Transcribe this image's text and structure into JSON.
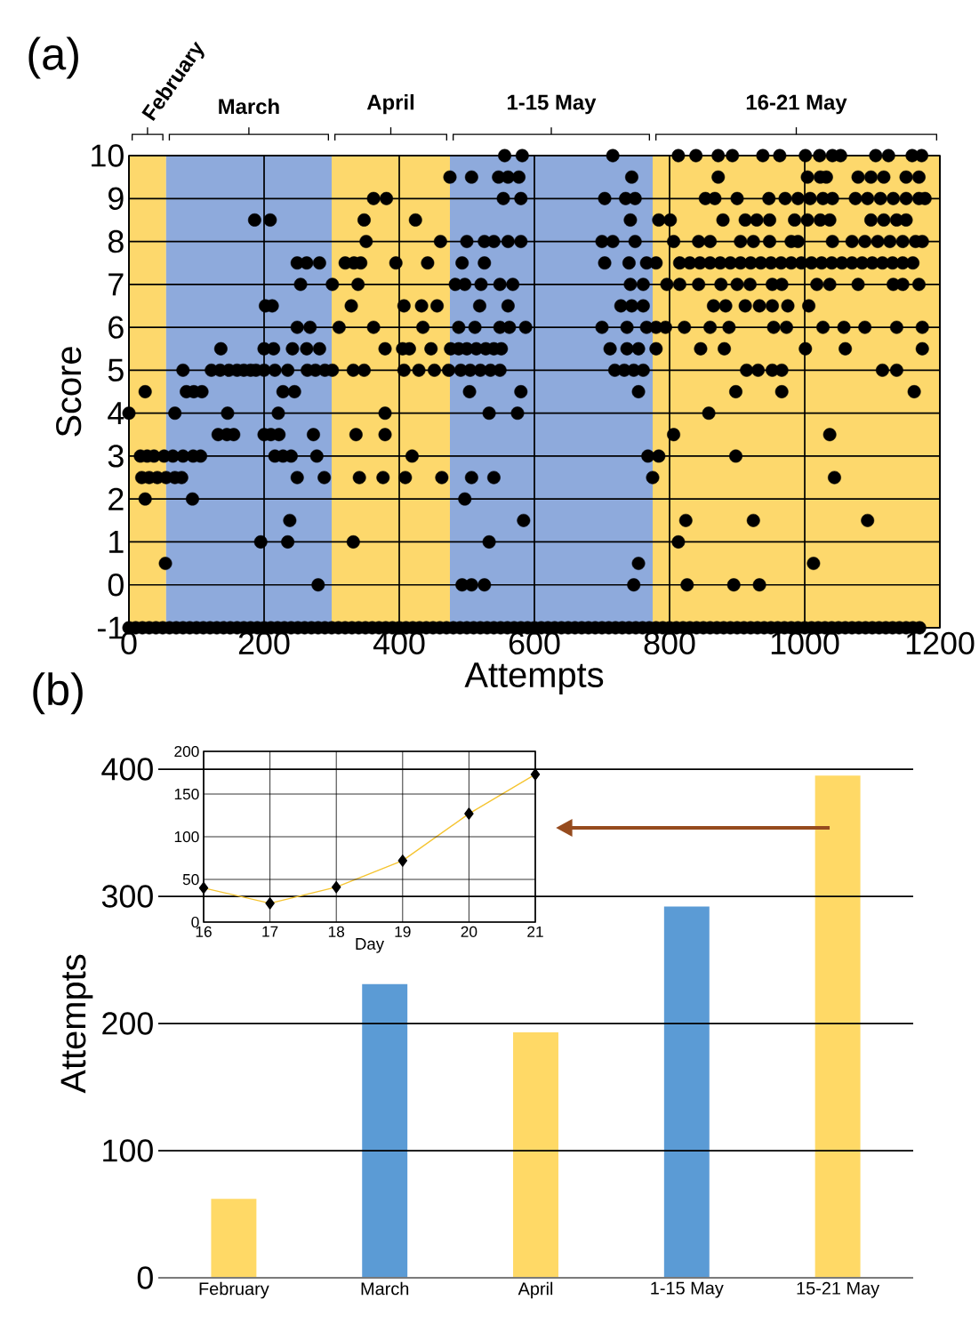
{
  "chart_data": [
    {
      "type": "scatter",
      "xlabel": "Attempts",
      "ylabel": "Score",
      "annotations": [
        "(a)"
      ],
      "xlim": [
        0,
        1200
      ],
      "ylim": [
        -1,
        10
      ],
      "xticks": [
        0,
        200,
        400,
        600,
        800,
        1000,
        1200
      ],
      "yticks": [
        -1,
        0,
        1,
        2,
        3,
        4,
        5,
        6,
        7,
        8,
        9,
        10
      ],
      "grid": true,
      "marker": "circle",
      "bands": [
        {
          "axis": "x",
          "from": 0,
          "to": 55,
          "label": "February",
          "color": "#fdd86c"
        },
        {
          "axis": "x",
          "from": 55,
          "to": 300,
          "label": "March",
          "color": "#8eaadc"
        },
        {
          "axis": "x",
          "from": 300,
          "to": 475,
          "label": "April",
          "color": "#fdd86c"
        },
        {
          "axis": "x",
          "from": 475,
          "to": 775,
          "label": "1-15 May",
          "color": "#8eaadc"
        },
        {
          "axis": "x",
          "from": 775,
          "to": 1200,
          "label": "16-21 May",
          "color": "#fdd86c"
        }
      ],
      "series": [
        {
          "color": "#000000",
          "x": [
            556,
            582,
            716,
            813,
            839,
            872,
            893,
            938,
            963,
            1001,
            1022,
            1041,
            1053,
            1105,
            1124,
            1159,
            1173
          ],
          "values": [
            10,
            10,
            10,
            10,
            10,
            10,
            10,
            10,
            10,
            10,
            10,
            10,
            10,
            10,
            10,
            10,
            10
          ]
        },
        {
          "color": "#000000",
          "x": [
            475,
            507,
            547,
            561,
            577,
            744,
            872,
            1004,
            1023,
            1032,
            1079,
            1098,
            1117,
            1150,
            1169
          ],
          "values": [
            9.5,
            9.5,
            9.5,
            9.5,
            9.5,
            9.5,
            9.5,
            9.5,
            9.5,
            9.5,
            9.5,
            9.5,
            9.5,
            9.5,
            9.5
          ]
        },
        {
          "color": "#000000",
          "x": [
            362,
            381,
            554,
            580,
            704,
            735,
            749,
            853,
            867,
            900,
            947,
            971,
            990,
            1008,
            1027,
            1041,
            1075,
            1093,
            1112,
            1131,
            1150,
            1169,
            1178
          ],
          "values": [
            9,
            9,
            9,
            9,
            9,
            9,
            9,
            9,
            9,
            9,
            9,
            9,
            9,
            9,
            9,
            9,
            9,
            9,
            9,
            9,
            9,
            9,
            9
          ]
        },
        {
          "color": "#000000",
          "x": [
            186,
            209,
            348,
            424,
            742,
            784,
            801,
            879,
            912,
            929,
            948,
            985,
            1004,
            1023,
            1037,
            1098,
            1117,
            1136,
            1150
          ],
          "values": [
            8.5,
            8.5,
            8.5,
            8.5,
            8.5,
            8.5,
            8.5,
            8.5,
            8.5,
            8.5,
            8.5,
            8.5,
            8.5,
            8.5,
            8.5,
            8.5,
            8.5,
            8.5,
            8.5
          ]
        },
        {
          "color": "#000000",
          "x": [
            351,
            461,
            500,
            526,
            540,
            561,
            580,
            700,
            716,
            749,
            806,
            843,
            860,
            905,
            924,
            948,
            980,
            990,
            1041,
            1070,
            1089,
            1108,
            1126,
            1145,
            1164,
            1174
          ],
          "values": [
            8,
            8,
            8,
            8,
            8,
            8,
            8,
            8,
            8,
            8,
            8,
            8,
            8,
            8,
            8,
            8,
            8,
            8,
            8,
            8,
            8,
            8,
            8,
            8,
            8,
            8
          ]
        },
        {
          "color": "#000000",
          "x": [
            249,
            263,
            282,
            320,
            333,
            343,
            395,
            442,
            493,
            526,
            704,
            740,
            766,
            780,
            815,
            830,
            845,
            860,
            875,
            890,
            905,
            920,
            935,
            950,
            965,
            980,
            995,
            1010,
            1025,
            1040,
            1055,
            1070,
            1085,
            1100,
            1115,
            1130,
            1145,
            1160
          ],
          "values": [
            7.5,
            7.5,
            7.5,
            7.5,
            7.5,
            7.5,
            7.5,
            7.5,
            7.5,
            7.5,
            7.5,
            7.5,
            7.5,
            7.5,
            7.5,
            7.5,
            7.5,
            7.5,
            7.5,
            7.5,
            7.5,
            7.5,
            7.5,
            7.5,
            7.5,
            7.5,
            7.5,
            7.5,
            7.5,
            7.5,
            7.5,
            7.5,
            7.5,
            7.5,
            7.5,
            7.5,
            7.5,
            7.5
          ]
        },
        {
          "color": "#000000",
          "x": [
            254,
            301,
            339,
            483,
            497,
            521,
            549,
            568,
            742,
            761,
            796,
            815,
            843,
            876,
            900,
            919,
            952,
            966,
            1018,
            1037,
            1079,
            1131,
            1145,
            1169
          ],
          "values": [
            7,
            7,
            7,
            7,
            7,
            7,
            7,
            7,
            7,
            7,
            7,
            7,
            7,
            7,
            7,
            7,
            7,
            7,
            7,
            7,
            7,
            7,
            7,
            7
          ]
        },
        {
          "color": "#000000",
          "x": [
            202,
            212,
            329,
            407,
            433,
            456,
            519,
            561,
            728,
            744,
            761,
            865,
            883,
            912,
            933,
            952,
            975,
            1006
          ],
          "values": [
            6.5,
            6.5,
            6.5,
            6.5,
            6.5,
            6.5,
            6.5,
            6.5,
            6.5,
            6.5,
            6.5,
            6.5,
            6.5,
            6.5,
            6.5,
            6.5,
            6.5,
            6.5
          ]
        },
        {
          "color": "#000000",
          "x": [
            249,
            268,
            311,
            362,
            435,
            488,
            512,
            549,
            563,
            587,
            700,
            737,
            766,
            780,
            794,
            822,
            860,
            888,
            954,
            973,
            1027,
            1058,
            1089,
            1136,
            1174
          ],
          "values": [
            6,
            6,
            6,
            6,
            6,
            6,
            6,
            6,
            6,
            6,
            6,
            6,
            6,
            6,
            6,
            6,
            6,
            6,
            6,
            6,
            6,
            6,
            6,
            6,
            6
          ]
        },
        {
          "color": "#000000",
          "x": [
            136,
            200,
            214,
            242,
            263,
            282,
            379,
            405,
            415,
            447,
            476,
            488,
            500,
            514,
            528,
            540,
            551,
            712,
            737,
            754,
            780,
            846,
            881,
            1001,
            1060,
            1174
          ],
          "values": [
            5.5,
            5.5,
            5.5,
            5.5,
            5.5,
            5.5,
            5.5,
            5.5,
            5.5,
            5.5,
            5.5,
            5.5,
            5.5,
            5.5,
            5.5,
            5.5,
            5.5,
            5.5,
            5.5,
            5.5,
            5.5,
            5.5,
            5.5,
            5.5,
            5.5,
            5.5
          ]
        },
        {
          "color": "#000000",
          "x": [
            80,
            122,
            135,
            148,
            160,
            170,
            180,
            188,
            200,
            216,
            235,
            264,
            276,
            290,
            301,
            332,
            348,
            407,
            429,
            452,
            473,
            491,
            505,
            520,
            535,
            549,
            719,
            733,
            747,
            761,
            914,
            931,
            952,
            966,
            1115,
            1136
          ],
          "values": [
            5,
            5,
            5,
            5,
            5,
            5,
            5,
            5,
            5,
            5,
            5,
            5,
            5,
            5,
            5,
            5,
            5,
            5,
            5,
            5,
            5,
            5,
            5,
            5,
            5,
            5,
            5,
            5,
            5,
            5,
            5,
            5,
            5,
            5,
            5,
            5
          ]
        },
        {
          "color": "#000000",
          "x": [
            24,
            85,
            96,
            108,
            228,
            245,
            504,
            580,
            754,
            898,
            966,
            1162
          ],
          "values": [
            4.5,
            4.5,
            4.5,
            4.5,
            4.5,
            4.5,
            4.5,
            4.5,
            4.5,
            4.5,
            4.5,
            4.5
          ]
        },
        {
          "color": "#000000",
          "x": [
            0,
            68,
            146,
            221,
            379,
            533,
            575,
            858
          ],
          "values": [
            4,
            4,
            4,
            4,
            4,
            4,
            4,
            4
          ]
        },
        {
          "color": "#000000",
          "x": [
            132,
            145,
            155,
            200,
            210,
            222,
            273,
            336,
            379,
            806,
            1037
          ],
          "values": [
            3.5,
            3.5,
            3.5,
            3.5,
            3.5,
            3.5,
            3.5,
            3.5,
            3.5,
            3.5,
            3.5
          ]
        },
        {
          "color": "#000000",
          "x": [
            17,
            27,
            37,
            52,
            65,
            80,
            95,
            106,
            216,
            228,
            240,
            278,
            419,
            768,
            784,
            898
          ],
          "values": [
            3,
            3,
            3,
            3,
            3,
            3,
            3,
            3,
            3,
            3,
            3,
            3,
            3,
            3,
            3,
            3
          ]
        },
        {
          "color": "#000000",
          "x": [
            19,
            30,
            42,
            55,
            68,
            78,
            249,
            289,
            341,
            376,
            409,
            463,
            507,
            540,
            775,
            1044
          ],
          "values": [
            2.5,
            2.5,
            2.5,
            2.5,
            2.5,
            2.5,
            2.5,
            2.5,
            2.5,
            2.5,
            2.5,
            2.5,
            2.5,
            2.5,
            2.5,
            2.5
          ]
        },
        {
          "color": "#000000",
          "x": [
            24,
            94,
            497
          ],
          "values": [
            2,
            2,
            2
          ]
        },
        {
          "color": "#000000",
          "x": [
            238,
            584,
            824,
            924,
            1093
          ],
          "values": [
            1.5,
            1.5,
            1.5,
            1.5,
            1.5
          ]
        },
        {
          "color": "#000000",
          "x": [
            195,
            235,
            332,
            533,
            813
          ],
          "values": [
            1,
            1,
            1,
            1,
            1
          ]
        },
        {
          "color": "#000000",
          "x": [
            54,
            754,
            1013
          ],
          "values": [
            0.5,
            0.5,
            0.5
          ]
        },
        {
          "color": "#000000",
          "x": [
            280,
            493,
            507,
            526,
            747,
            826,
            895,
            933
          ],
          "values": [
            0,
            0,
            0,
            0,
            0,
            0,
            0,
            0
          ]
        },
        {
          "color": "#000000",
          "x": [
            0,
            10,
            20,
            30,
            40,
            50,
            60,
            70,
            80,
            90,
            100,
            110,
            120,
            130,
            140,
            150,
            160,
            170,
            180,
            190,
            200,
            210,
            220,
            230,
            240,
            250,
            260,
            270,
            280,
            290,
            300,
            310,
            320,
            330,
            340,
            350,
            360,
            370,
            380,
            390,
            400,
            410,
            420,
            430,
            440,
            450,
            460,
            470,
            480,
            490,
            500,
            510,
            520,
            530,
            540,
            550,
            560,
            570,
            580,
            590,
            600,
            610,
            620,
            630,
            640,
            650,
            660,
            670,
            680,
            690,
            700,
            710,
            720,
            730,
            740,
            750,
            760,
            770,
            780,
            790,
            800,
            810,
            820,
            830,
            840,
            850,
            860,
            870,
            880,
            890,
            900,
            910,
            920,
            930,
            940,
            950,
            960,
            970,
            980,
            990,
            1000,
            1010,
            1020,
            1030,
            1040,
            1050,
            1060,
            1070,
            1080,
            1090,
            1100,
            1110,
            1120,
            1130,
            1140,
            1150,
            1160,
            1170
          ],
          "values": [
            -1,
            -1,
            -1,
            -1,
            -1,
            -1,
            -1,
            -1,
            -1,
            -1,
            -1,
            -1,
            -1,
            -1,
            -1,
            -1,
            -1,
            -1,
            -1,
            -1,
            -1,
            -1,
            -1,
            -1,
            -1,
            -1,
            -1,
            -1,
            -1,
            -1,
            -1,
            -1,
            -1,
            -1,
            -1,
            -1,
            -1,
            -1,
            -1,
            -1,
            -1,
            -1,
            -1,
            -1,
            -1,
            -1,
            -1,
            -1,
            -1,
            -1,
            -1,
            -1,
            -1,
            -1,
            -1,
            -1,
            -1,
            -1,
            -1,
            -1,
            -1,
            -1,
            -1,
            -1,
            -1,
            -1,
            -1,
            -1,
            -1,
            -1,
            -1,
            -1,
            -1,
            -1,
            -1,
            -1,
            -1,
            -1,
            -1,
            -1,
            -1,
            -1,
            -1,
            -1,
            -1,
            -1,
            -1,
            -1,
            -1,
            -1,
            -1,
            -1,
            -1,
            -1,
            -1,
            -1,
            -1,
            -1,
            -1,
            -1,
            -1,
            -1,
            -1,
            -1,
            -1,
            -1,
            -1,
            -1,
            -1,
            -1,
            -1,
            -1,
            -1,
            -1,
            -1,
            -1,
            -1,
            -1
          ]
        }
      ]
    },
    {
      "type": "bar",
      "ylabel": "Attempts",
      "annotations": [
        "(b)"
      ],
      "categories": [
        "February",
        "March",
        "April",
        "1-15 May",
        "15-21 May"
      ],
      "values": [
        62,
        231,
        193,
        292,
        395
      ],
      "colors": [
        "#ffd966",
        "#5b9bd5",
        "#ffd966",
        "#5b9bd5",
        "#ffd966"
      ],
      "ylim": [
        0,
        400
      ],
      "yticks": [
        0,
        100,
        200,
        300,
        400
      ],
      "grid": "y"
    },
    {
      "type": "line",
      "xlabel": "Day",
      "x": [
        16,
        17,
        18,
        19,
        20,
        21
      ],
      "values": [
        40,
        22,
        41,
        72,
        127,
        173
      ],
      "color": "#f5c430",
      "xlim": [
        16,
        21
      ],
      "ylim": [
        0,
        200
      ],
      "xticks": [
        16,
        17,
        18,
        19,
        20,
        21
      ],
      "yticks": [
        0,
        50,
        100,
        150,
        200
      ],
      "grid": true,
      "marker": "diamond"
    }
  ]
}
